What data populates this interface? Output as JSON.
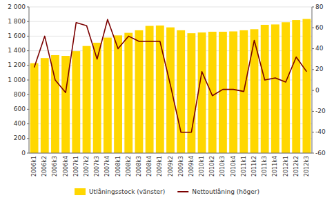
{
  "chart_data": {
    "type": "bar",
    "categories": [
      "2006k1",
      "2006k2",
      "2006k3",
      "2006k4",
      "2007k1",
      "2007k2",
      "2007k3",
      "2007k4",
      "2008k1",
      "2008k2",
      "2008k3",
      "2008k4",
      "2009k1",
      "2009k2",
      "2009k3",
      "2009k4",
      "2010k1",
      "2010k2",
      "2010k3",
      "2010k4",
      "2011k1",
      "2011k2",
      "2011k3",
      "2011k4",
      "2012k1",
      "2012k2",
      "2012k3"
    ],
    "series": [
      {
        "name": "Utlåningsstock (vänster)",
        "type": "bar",
        "color": "#FFD700",
        "values": [
          1230,
          1300,
          1340,
          1330,
          1395,
          1465,
          1510,
          1580,
          1610,
          1645,
          1680,
          1740,
          1745,
          1720,
          1680,
          1640,
          1650,
          1660,
          1660,
          1665,
          1680,
          1695,
          1755,
          1760,
          1790,
          1820,
          1835
        ]
      },
      {
        "name": "Nettoutlåning (höger)",
        "type": "line",
        "axis": "y2",
        "color": "#7B0000",
        "values": [
          22,
          52,
          10,
          -2,
          65,
          62,
          30,
          68,
          40,
          52,
          47,
          47,
          47,
          5,
          -40,
          -40,
          18,
          -5,
          1,
          1,
          -1,
          48,
          10,
          12,
          8,
          32,
          18
        ]
      }
    ],
    "ylim": [
      0,
      2000
    ],
    "yticks": [
      0,
      200,
      400,
      600,
      800,
      {
        "value": 1000,
        "label": "1 000"
      },
      {
        "value": 1200,
        "label": "1 200"
      },
      {
        "value": 1400,
        "label": "1 400"
      },
      {
        "value": 1600,
        "label": "1 600"
      },
      {
        "value": 1800,
        "label": "1 800"
      },
      {
        "value": 2000,
        "label": "2 000"
      }
    ],
    "y2lim": [
      -60,
      80
    ],
    "y2ticks": [
      -60,
      -40,
      -20,
      0,
      20,
      40,
      60,
      80
    ],
    "grid": true,
    "legend": "bottom"
  }
}
